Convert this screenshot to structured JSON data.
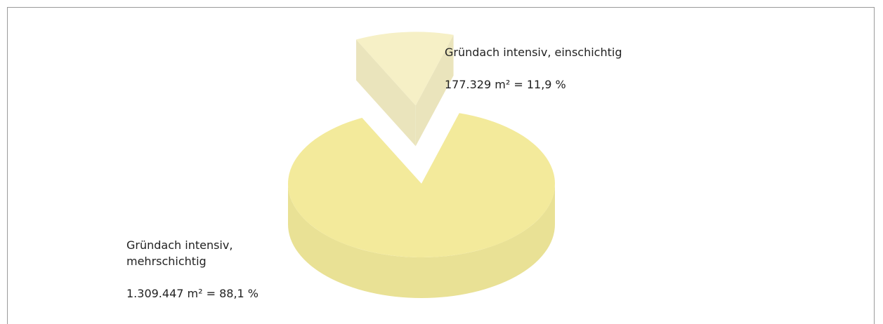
{
  "chart_data": {
    "type": "pie",
    "categories": [
      "Gründach intensiv,\nmehrschichtig",
      "Gründach intensiv, einschichtig"
    ],
    "values": [
      1309447,
      177329
    ],
    "value_labels": [
      "1.309.447 m² = 88,1 %",
      "177.329 m² = 11,9 %"
    ],
    "colors": [
      "#f3ea9b",
      "#f6f0c6"
    ],
    "exploded": [
      false,
      true
    ]
  }
}
